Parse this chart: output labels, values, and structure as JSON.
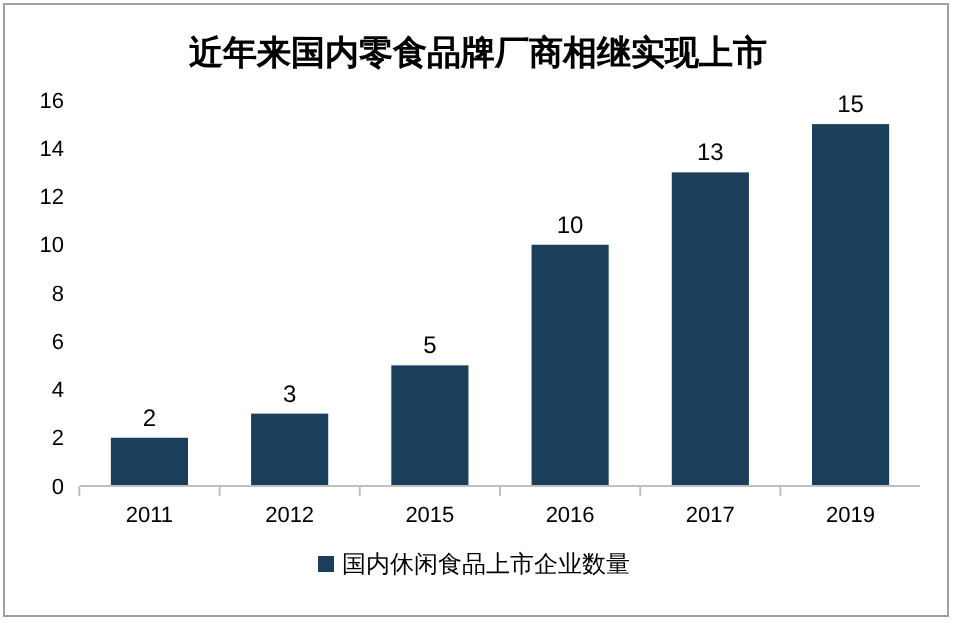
{
  "chart_data": {
    "type": "bar",
    "title": "近年来国内零食品牌厂商相继实现上市",
    "categories": [
      "2011",
      "2012",
      "2015",
      "2016",
      "2017",
      "2019"
    ],
    "series": [
      {
        "name": "国内休闲食品上市企业数量",
        "color": "#1b3f5a",
        "values": [
          2,
          3,
          5,
          10,
          13,
          15
        ]
      }
    ],
    "ylim": [
      0,
      16
    ],
    "yticks": [
      0,
      2,
      4,
      6,
      8,
      10,
      12,
      14,
      16
    ],
    "grid": false,
    "legend": "bottom",
    "data_labels": true
  }
}
